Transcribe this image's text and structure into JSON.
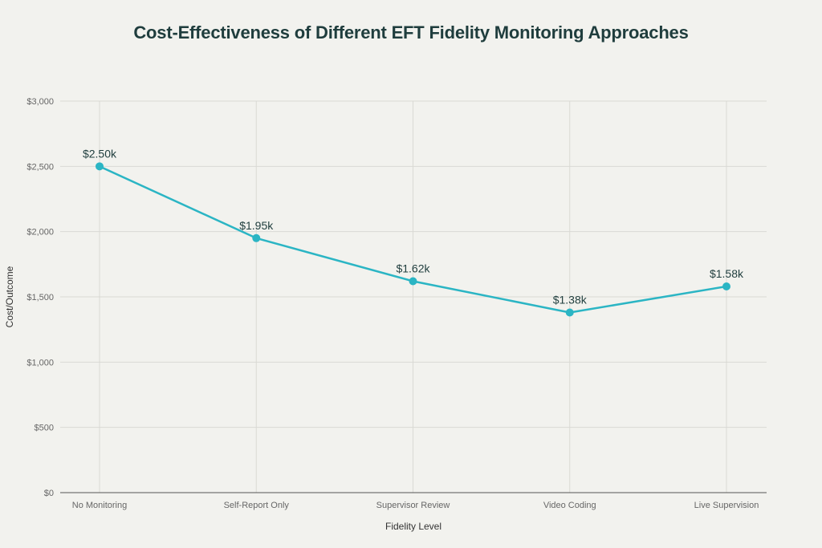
{
  "chart_data": {
    "type": "line",
    "title": "Cost-Effectiveness of Different EFT Fidelity Monitoring Approaches",
    "xlabel": "Fidelity Level",
    "ylabel": "Cost/Outcome",
    "categories": [
      "No Monitoring",
      "Self-Report Only",
      "Supervisor Review",
      "Video Coding",
      "Live Supervision"
    ],
    "series": [
      {
        "values": [
          2500,
          1950,
          1620,
          1380,
          1580
        ],
        "data_labels": [
          "$2.50k",
          "$1.95k",
          "$1.62k",
          "$1.38k",
          "$1.58k"
        ]
      }
    ],
    "ylim": [
      0,
      3000
    ],
    "yticks": [
      0,
      500,
      1000,
      1500,
      2000,
      2500,
      3000
    ],
    "ytick_labels": [
      "$0",
      "$500",
      "$1,000",
      "$1,500",
      "$2,000",
      "$2,500",
      "$3,000"
    ],
    "grid": true,
    "legend": "none"
  },
  "colors": {
    "line": "#2bb5c4",
    "title": "#1f3d3d",
    "axis_text": "#666666",
    "grid": "#d9d9d4",
    "axis_line": "#555555",
    "label_text": "#1f3d3d"
  }
}
